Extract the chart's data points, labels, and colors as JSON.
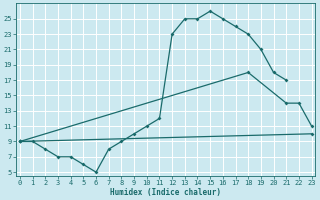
{
  "xlabel": "Humidex (Indice chaleur)",
  "bg_color": "#cce9f0",
  "line_color": "#1a6b6b",
  "grid_color": "#ffffff",
  "series": [
    {
      "x": [
        0,
        1,
        2,
        3,
        4,
        5,
        6,
        7,
        8,
        9,
        10,
        11,
        12,
        13,
        14,
        15,
        16,
        17,
        18,
        19,
        20,
        21
      ],
      "y": [
        9,
        9,
        8,
        7,
        7,
        6,
        5,
        8,
        9,
        10,
        11,
        12,
        23,
        25,
        25,
        26,
        25,
        24,
        23,
        21,
        18,
        17
      ]
    },
    {
      "comment": "second line - from 0,9 up to 18,18 then 21,14 22,14 23,11",
      "x": [
        0,
        18,
        21,
        22,
        23
      ],
      "y": [
        9,
        18,
        14,
        14,
        11
      ]
    },
    {
      "x": [
        0,
        23
      ],
      "y": [
        9,
        10
      ]
    }
  ],
  "xlim": [
    -0.3,
    23.3
  ],
  "ylim": [
    4.5,
    27
  ],
  "yticks": [
    5,
    7,
    9,
    11,
    13,
    15,
    17,
    19,
    21,
    23,
    25
  ],
  "xticks": [
    0,
    1,
    2,
    3,
    4,
    5,
    6,
    7,
    8,
    9,
    10,
    11,
    12,
    13,
    14,
    15,
    16,
    17,
    18,
    19,
    20,
    21,
    22,
    23
  ],
  "xtick_labels": [
    "0",
    "1",
    "2",
    "3",
    "4",
    "5",
    "6",
    "7",
    "8",
    "9",
    "10",
    "11",
    "12",
    "13",
    "14",
    "15",
    "16",
    "17",
    "18",
    "19",
    "20",
    "21",
    "22",
    "23"
  ],
  "figwidth": 3.2,
  "figheight": 2.0,
  "dpi": 100
}
